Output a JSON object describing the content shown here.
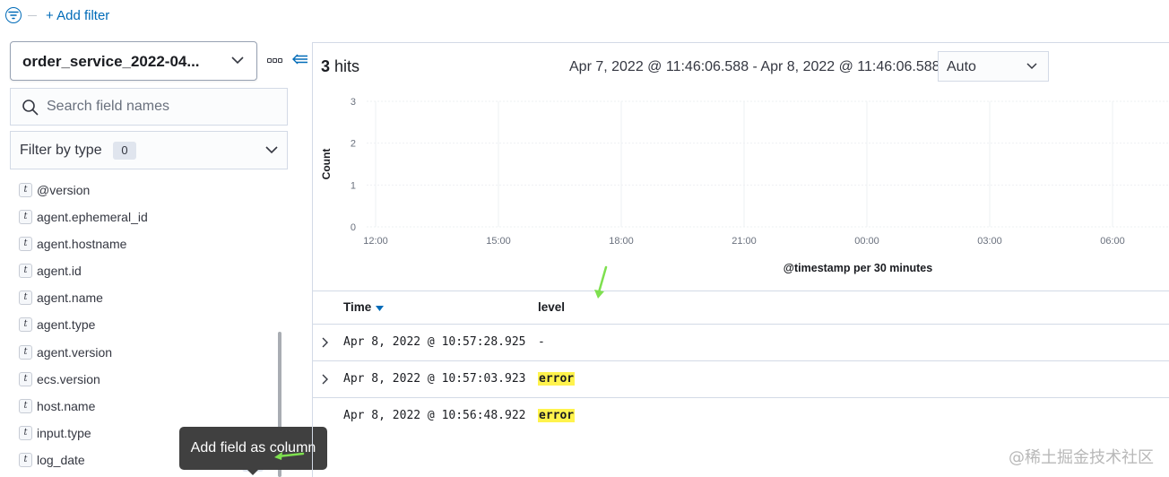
{
  "filter_bar": {
    "add_filter_label": "+ Add filter"
  },
  "sidebar": {
    "index_pattern": "order_service_2022-04...",
    "search": {
      "placeholder": "Search field names"
    },
    "type_filter": {
      "label": "Filter by type",
      "count": "0"
    },
    "fields": [
      {
        "type_glyph": "t",
        "name": "@version"
      },
      {
        "type_glyph": "t",
        "name": "agent.ephemeral_id"
      },
      {
        "type_glyph": "t",
        "name": "agent.hostname"
      },
      {
        "type_glyph": "t",
        "name": "agent.id"
      },
      {
        "type_glyph": "t",
        "name": "agent.name"
      },
      {
        "type_glyph": "t",
        "name": "agent.type"
      },
      {
        "type_glyph": "t",
        "name": "agent.version"
      },
      {
        "type_glyph": "t",
        "name": "ecs.version"
      },
      {
        "type_glyph": "t",
        "name": "host.name"
      },
      {
        "type_glyph": "t",
        "name": "input.type"
      },
      {
        "type_glyph": "t",
        "name": "log_date"
      }
    ],
    "tooltip": "Add field as column"
  },
  "main": {
    "hits_count": "3",
    "hits_label": "hits",
    "time_range": "Apr 7, 2022 @ 11:46:06.588 - Apr 8, 2022 @ 11:46:06.588",
    "interval": "Auto",
    "table": {
      "columns": [
        "Time",
        "level"
      ],
      "rows": [
        {
          "time": "Apr 8, 2022 @ 10:57:28.925",
          "level": "-",
          "highlight": false
        },
        {
          "time": "Apr 8, 2022 @ 10:57:03.923",
          "level": "error",
          "highlight": true
        },
        {
          "time": "Apr 8, 2022 @ 10:56:48.922",
          "level": "error",
          "highlight": true
        }
      ]
    }
  },
  "chart_data": {
    "type": "bar",
    "x_ticks": [
      "12:00",
      "15:00",
      "18:00",
      "21:00",
      "00:00",
      "03:00",
      "06:00"
    ],
    "y_ticks": [
      "0",
      "1",
      "2",
      "3"
    ],
    "ylim": [
      0,
      3
    ],
    "xlabel": "@timestamp per 30 minutes",
    "ylabel": "Count",
    "grid": true,
    "series": []
  },
  "colors": {
    "accent": "#006bb8",
    "highlight": "#fff34d",
    "annotation_arrow": "#7ee04f"
  },
  "watermark": "@稀土掘金技术社区"
}
